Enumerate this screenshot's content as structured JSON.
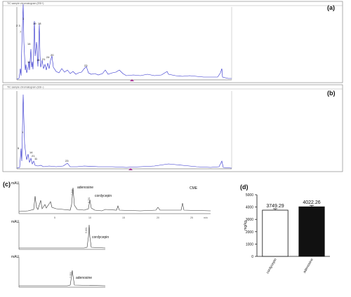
{
  "panels": {
    "a": {
      "letter": "(a)",
      "peak_labels": [
        "1",
        "2 3",
        "7",
        "14",
        "19",
        "18",
        "11",
        "16",
        "20",
        "21",
        "23",
        "24"
      ]
    },
    "b": {
      "letter": "(b)",
      "peak_labels": [
        "1",
        "5",
        "14",
        "21",
        "11",
        "23"
      ]
    },
    "c": {
      "letter": "(c)",
      "top_labels": {
        "adenosine": "adenosine",
        "cordycepin": "cordycepin",
        "cme": "CME",
        "rt1": "7.344",
        "rt2": "9.751"
      },
      "mid_labels": {
        "cordycepin": "cordycepin",
        "rt": "9.801"
      },
      "bot_labels": {
        "adenosine": "adenosine",
        "rt": "7.354"
      },
      "y_unit": "mAU",
      "x_unit": "min",
      "x_ticks": [
        "5",
        "10",
        "15",
        "20",
        "25"
      ]
    }
  },
  "chart_data": {
    "type": "bar",
    "letter": "(d)",
    "categories": [
      "cordycepin",
      "adenosine"
    ],
    "values": [
      3749.29,
      4022.26
    ],
    "value_labels": [
      "3749.29",
      "4022.26"
    ],
    "colors": [
      "#ffffff",
      "#111111"
    ],
    "ylabel": "mg/kg",
    "ylim": [
      0,
      5000
    ],
    "yticks": [
      "0",
      "1000",
      "2000",
      "3000",
      "4000",
      "5000"
    ]
  }
}
